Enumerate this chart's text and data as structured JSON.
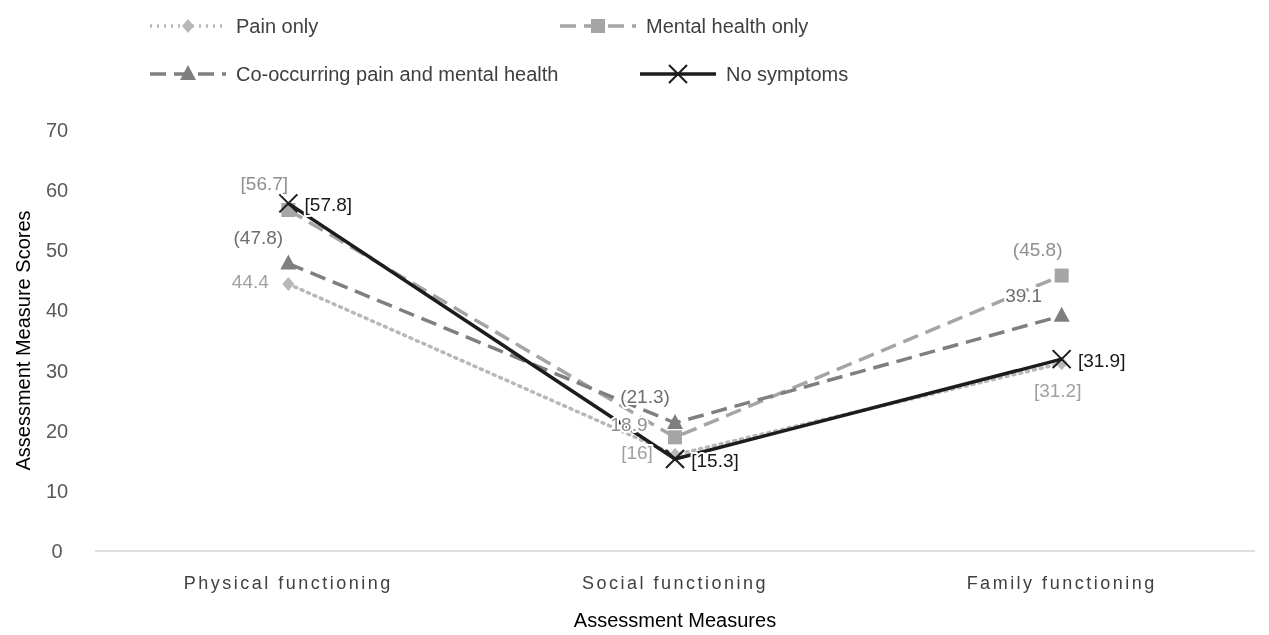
{
  "chart_data": {
    "type": "line",
    "xlabel": "Assessment Measures",
    "ylabel": "Assessment Measure Scores",
    "categories": [
      "Physical functioning",
      "Social functioning",
      "Family functioning"
    ],
    "series": [
      {
        "name": "Pain only",
        "color": "#b8b8b8",
        "values": [
          44.4,
          16,
          31.2
        ],
        "value_labels": [
          "44.4",
          "[16]",
          "[31.2]"
        ],
        "marker": "diamond",
        "line_style": "dotted"
      },
      {
        "name": "Mental health only",
        "color": "#a5a5a5",
        "values": [
          56.7,
          18.9,
          45.8
        ],
        "value_labels": [
          "[56.7]",
          "18.9",
          "(45.8)"
        ],
        "marker": "square",
        "line_style": "dashed"
      },
      {
        "name": "Co-occurring pain and mental health",
        "color": "#7f7f7f",
        "values": [
          47.8,
          21.3,
          39.1
        ],
        "value_labels": [
          "(47.8)",
          "(21.3)",
          "39.1"
        ],
        "marker": "triangle",
        "line_style": "dashed"
      },
      {
        "name": "No symptoms",
        "color": "#1c1c1c",
        "values": [
          57.8,
          15.3,
          31.9
        ],
        "value_labels": [
          "[57.8]",
          "[15.3]",
          "[31.9]"
        ],
        "marker": "cross",
        "line_style": "solid"
      }
    ],
    "ylim": [
      0,
      70
    ],
    "yticks": [
      0,
      10,
      20,
      30,
      40,
      50,
      60,
      70
    ],
    "grid": false,
    "legend": "top"
  }
}
